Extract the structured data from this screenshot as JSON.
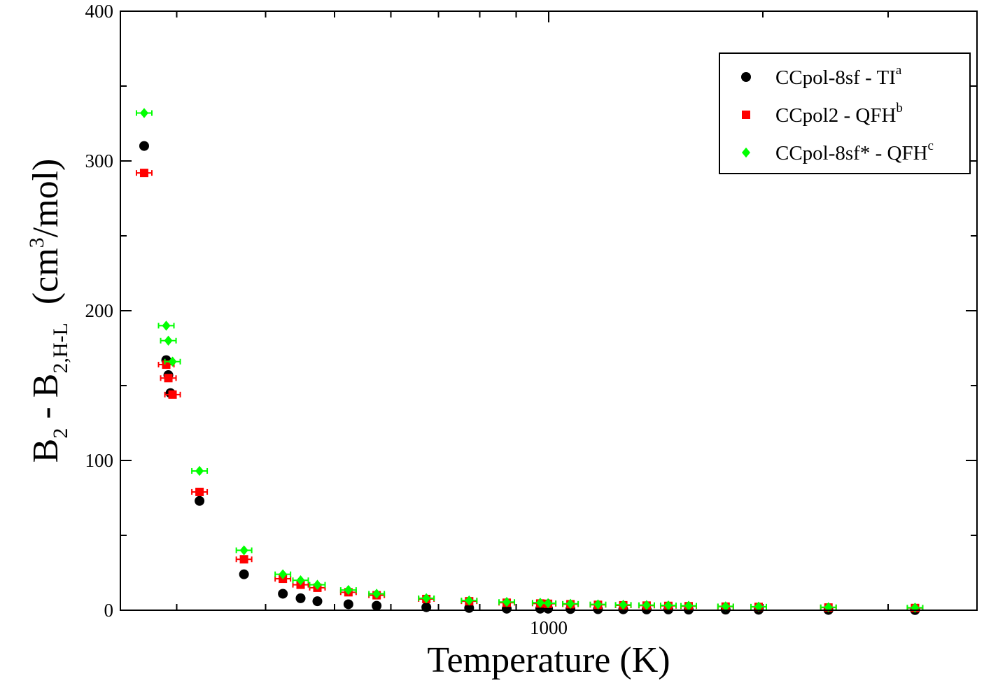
{
  "chart_data": {
    "type": "scatter",
    "xlabel": "Temperature (K)",
    "ylabel": {
      "parts": [
        "B",
        "2",
        " - B",
        "2,H-L",
        "  (cm",
        "3",
        "/mol)"
      ]
    },
    "xscale": "log",
    "xlim": [
      250,
      4000
    ],
    "ylim": [
      0,
      400
    ],
    "y_ticks": [
      "0",
      "100",
      "200",
      "300",
      "400"
    ],
    "x_ticks": [
      "1000"
    ],
    "grid": false,
    "legend_position": "top-right",
    "series": [
      {
        "name": "CCpol-8sf - TI",
        "name_sup": "a",
        "marker": "circle",
        "color": "#000000",
        "points": [
          [
            270,
            310
          ],
          [
            290,
            167
          ],
          [
            292,
            157
          ],
          [
            294,
            145
          ],
          [
            323,
            73
          ],
          [
            373,
            24
          ],
          [
            423,
            11
          ],
          [
            448,
            8
          ],
          [
            473,
            6
          ],
          [
            523,
            4
          ],
          [
            573,
            3
          ],
          [
            673,
            2
          ],
          [
            773,
            1.5
          ],
          [
            873,
            1
          ],
          [
            973,
            1
          ],
          [
            998,
            1
          ],
          [
            1073,
            0.8
          ],
          [
            1173,
            0.7
          ],
          [
            1273,
            0.6
          ],
          [
            1373,
            0.5
          ],
          [
            1473,
            0.5
          ],
          [
            1573,
            0.4
          ],
          [
            1773,
            0.4
          ],
          [
            1973,
            0.3
          ],
          [
            2473,
            0.2
          ],
          [
            3273,
            0.1
          ]
        ]
      },
      {
        "name": "CCpol2 - QFH",
        "name_sup": "b",
        "marker": "square",
        "color": "#ff0000",
        "points": [
          [
            270,
            292
          ],
          [
            290,
            164
          ],
          [
            292,
            155
          ],
          [
            296,
            144
          ],
          [
            323,
            79
          ],
          [
            373,
            34
          ],
          [
            423,
            21
          ],
          [
            448,
            17
          ],
          [
            473,
            15
          ],
          [
            523,
            12
          ],
          [
            573,
            10
          ],
          [
            673,
            7.5
          ],
          [
            773,
            6
          ],
          [
            873,
            5
          ],
          [
            973,
            4.5
          ],
          [
            998,
            4.3
          ],
          [
            1073,
            4
          ],
          [
            1173,
            3.6
          ],
          [
            1273,
            3.3
          ],
          [
            1373,
            3.1
          ],
          [
            1473,
            2.9
          ],
          [
            1573,
            2.7
          ],
          [
            1773,
            2.4
          ],
          [
            1973,
            2.2
          ],
          [
            2473,
            1.8
          ],
          [
            3273,
            1.5
          ]
        ]
      },
      {
        "name": "CCpol-8sf* - QFH",
        "name_sup": "c",
        "marker": "diamond",
        "color": "#00ff00",
        "points": [
          [
            270,
            332
          ],
          [
            290,
            190
          ],
          [
            292,
            180
          ],
          [
            296,
            166
          ],
          [
            323,
            93
          ],
          [
            373,
            40
          ],
          [
            423,
            24
          ],
          [
            448,
            20
          ],
          [
            473,
            17
          ],
          [
            523,
            13.5
          ],
          [
            573,
            11
          ],
          [
            673,
            8
          ],
          [
            773,
            6.5
          ],
          [
            873,
            5.5
          ],
          [
            973,
            5
          ],
          [
            998,
            4.7
          ],
          [
            1073,
            4.3
          ],
          [
            1173,
            3.9
          ],
          [
            1273,
            3.6
          ],
          [
            1373,
            3.4
          ],
          [
            1473,
            3.2
          ],
          [
            1573,
            3
          ],
          [
            1773,
            2.6
          ],
          [
            1973,
            2.4
          ],
          [
            2473,
            2
          ],
          [
            3273,
            1.7
          ]
        ]
      }
    ]
  }
}
